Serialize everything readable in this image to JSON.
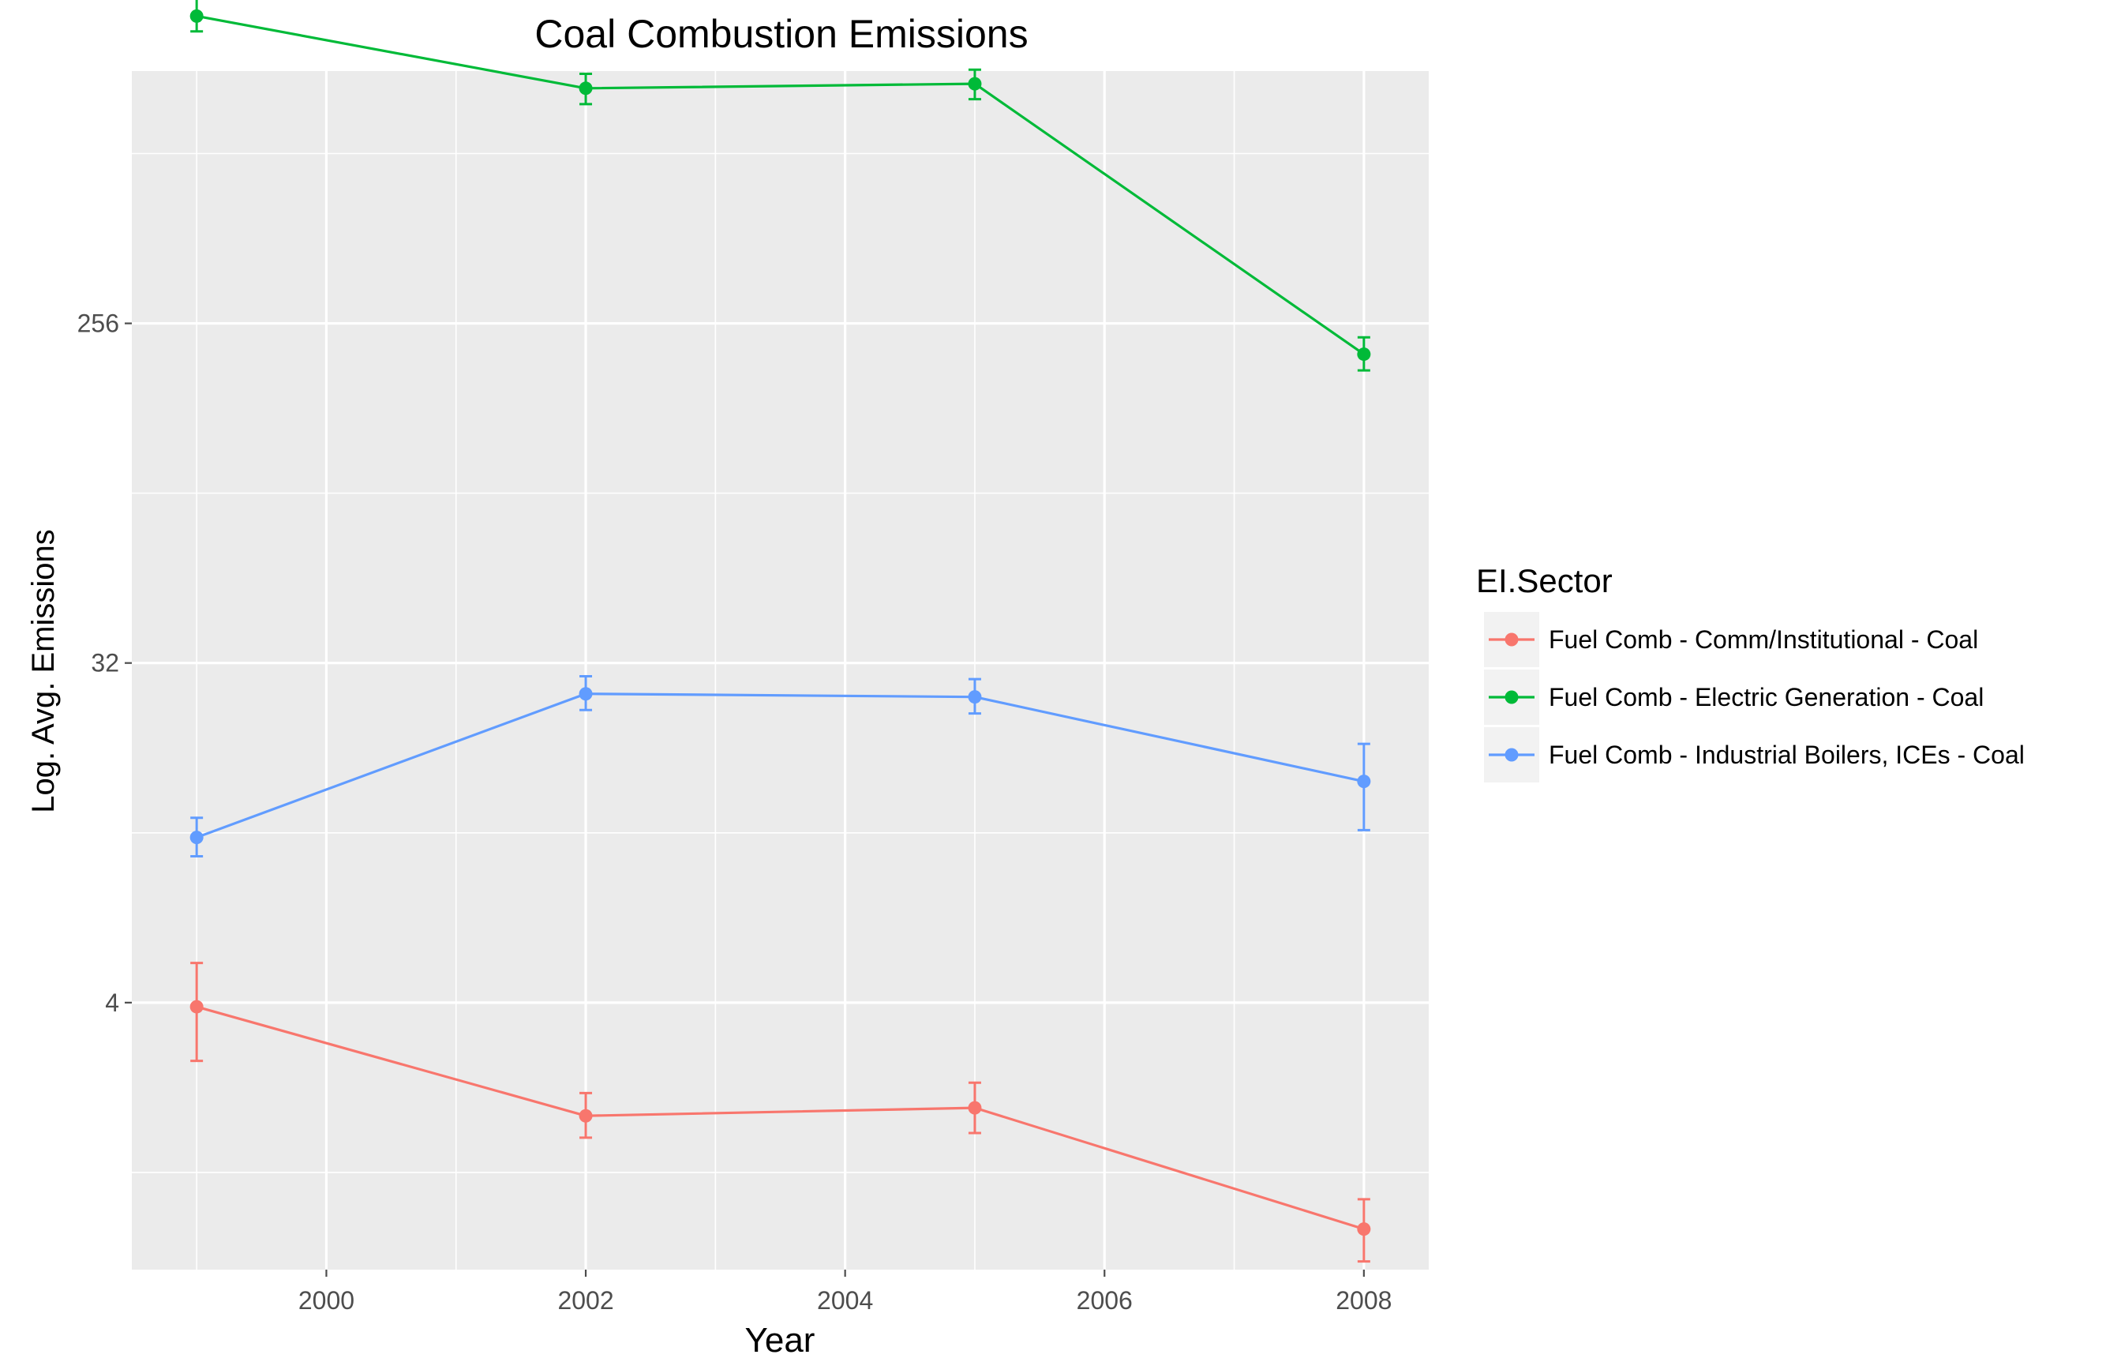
{
  "chart_data": {
    "type": "line",
    "title": "Coal Combustion Emissions",
    "xlabel": "Year",
    "ylabel": "Log. Avg. Emissions",
    "y_scale": "log2",
    "xlim": [
      1998.5,
      2008.5
    ],
    "ylim": [
      0.78,
      1200
    ],
    "x_ticks": [
      2000,
      2002,
      2004,
      2006,
      2008
    ],
    "y_ticks": [
      4,
      32,
      256
    ],
    "y_tick_labels": [
      "4",
      "32",
      "256"
    ],
    "x": [
      1999,
      2002,
      2005,
      2008
    ],
    "grid": true,
    "legend": {
      "title": "EI.Sector",
      "position": "right"
    },
    "series": [
      {
        "name": "Fuel Comb - Comm/Institutional - Coal",
        "color": "#F8766D",
        "values": [
          3.9,
          2.0,
          2.1,
          1.0
        ],
        "err_low": [
          2.8,
          1.75,
          1.8,
          0.82
        ],
        "err_high": [
          5.1,
          2.3,
          2.45,
          1.2
        ]
      },
      {
        "name": "Fuel Comb - Electric Generation - Coal",
        "color": "#00BA38",
        "values": [
          1680,
          1080,
          1110,
          212
        ],
        "err_low": [
          1530,
          980,
          1010,
          192
        ],
        "err_high": [
          1870,
          1180,
          1210,
          235
        ]
      },
      {
        "name": "Fuel Comb - Industrial Boilers, ICEs - Coal",
        "color": "#619CFF",
        "values": [
          11.0,
          26.5,
          26.0,
          15.5
        ],
        "err_low": [
          9.8,
          24.0,
          23.5,
          11.5
        ],
        "err_high": [
          12.4,
          29.5,
          29.0,
          19.5
        ]
      }
    ]
  },
  "ui": {
    "panel_bg": "#EBEBEB",
    "grid_major": "#FFFFFF",
    "text_color": "#000000",
    "tick_color": "#4D4D4D"
  }
}
